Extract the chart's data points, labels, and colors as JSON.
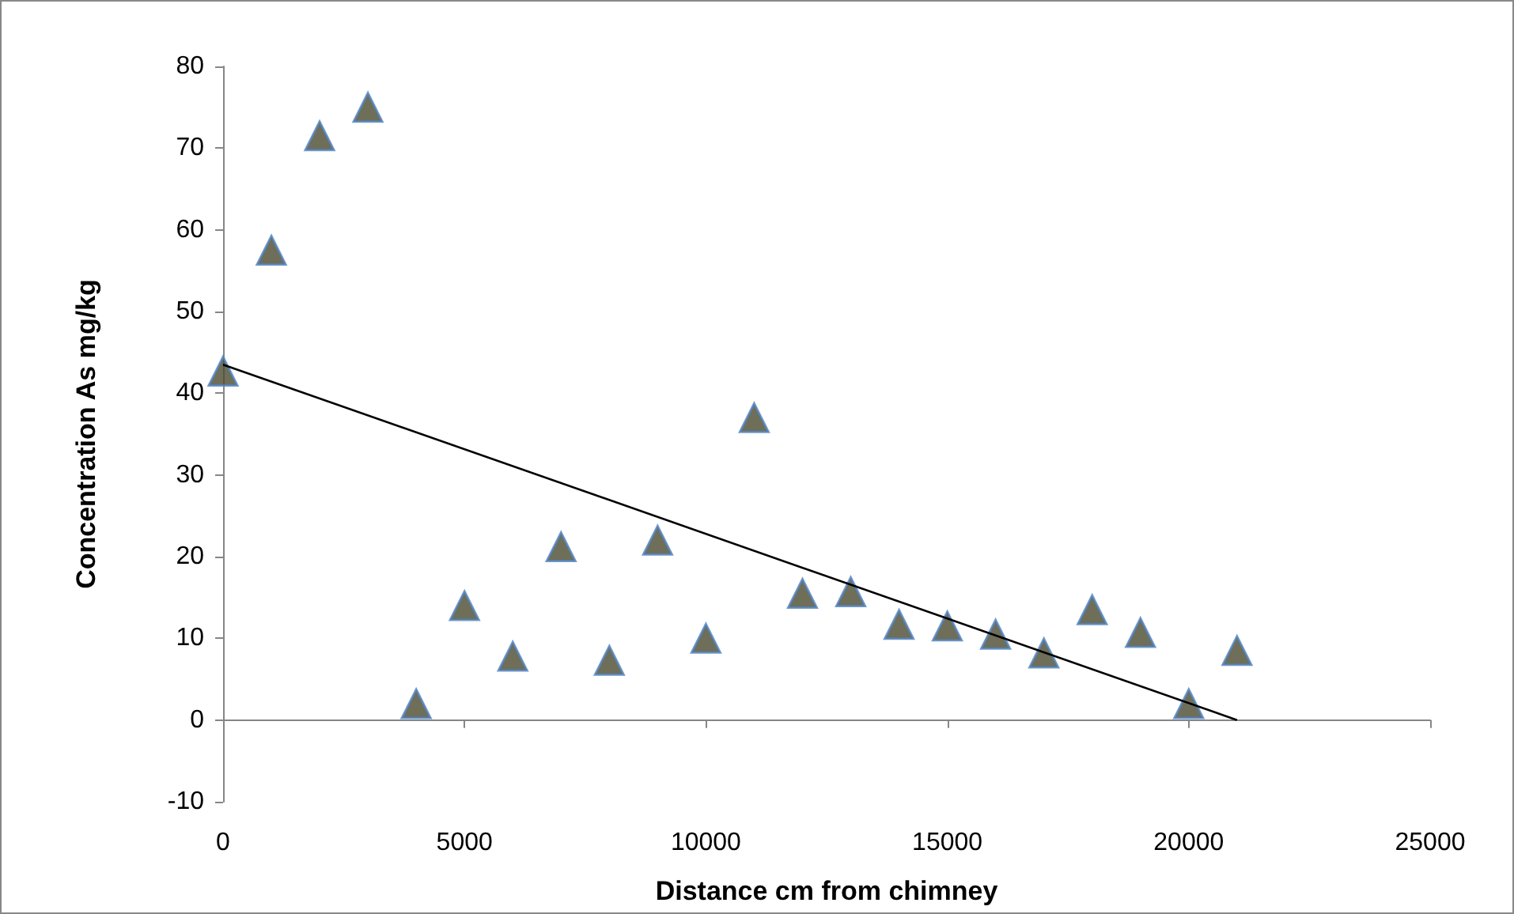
{
  "chart_data": {
    "type": "scatter",
    "xlabel": "Distance cm from chimney",
    "ylabel": "Concentration As mg/kg",
    "x": [
      0,
      1000,
      2000,
      3000,
      4000,
      5000,
      6000,
      7000,
      8000,
      9000,
      10000,
      11000,
      12000,
      13000,
      14000,
      15000,
      16000,
      17000,
      18000,
      19000,
      20000,
      21000
    ],
    "series": [
      {
        "color": "#4a4a30",
        "values": [
          42.7,
          57.5,
          71.5,
          75,
          2,
          14,
          7.8,
          21.2,
          7.3,
          22,
          10,
          37,
          15.5,
          15.7,
          11.7,
          11.5,
          10.5,
          8.2,
          13.5,
          10.7,
          2,
          8.5
        ]
      },
      {
        "type": "line",
        "color": "#000000",
        "x": [
          0,
          21000
        ],
        "values": [
          43.5,
          0
        ],
        "marker": "none"
      }
    ],
    "marker": "triangle",
    "xlim": [
      0,
      25000
    ],
    "xticks": [
      0,
      5000,
      10000,
      15000,
      20000,
      25000
    ],
    "ylim": [
      -10,
      80
    ],
    "yticks": [
      -10,
      0,
      10,
      20,
      30,
      40,
      50,
      60,
      70,
      80
    ]
  }
}
